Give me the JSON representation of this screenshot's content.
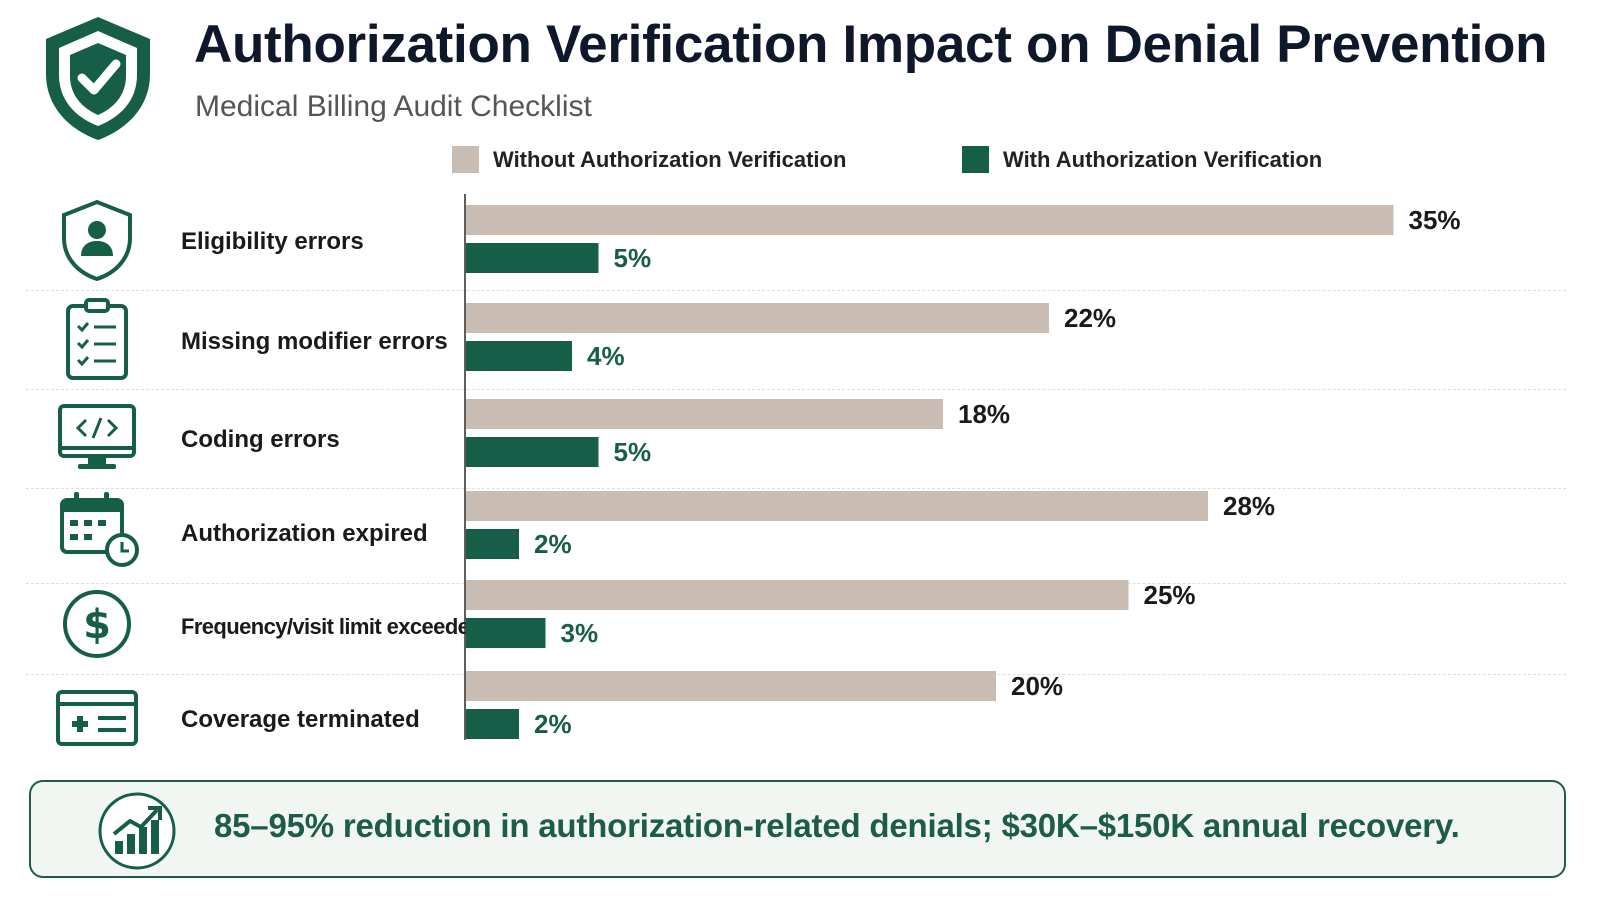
{
  "header": {
    "title": "Authorization Verification Impact on Denial Prevention",
    "subtitle": "Medical Billing Audit Checklist"
  },
  "colors": {
    "without": "#c9bdb3",
    "with": "#175e48",
    "accent": "#1d5c46",
    "footer_bg": "#f1f6f3"
  },
  "legend": {
    "without_label": "Without Authorization Verification",
    "with_label": "With Authorization Verification"
  },
  "categories": [
    {
      "label": "Eligibility errors",
      "icon": "user-shield-icon"
    },
    {
      "label": "Missing modifier errors",
      "icon": "clipboard-checklist-icon"
    },
    {
      "label": "Coding errors",
      "icon": "code-monitor-icon"
    },
    {
      "label": "Authorization expired",
      "icon": "calendar-clock-icon"
    },
    {
      "label": "Frequency/visit limit exceeded",
      "icon": "dollar-circle-icon"
    },
    {
      "label": "Coverage terminated",
      "icon": "insurance-card-icon"
    }
  ],
  "chart_data": {
    "type": "bar",
    "orientation": "horizontal",
    "categories": [
      "Eligibility errors",
      "Missing modifier errors",
      "Coding errors",
      "Authorization expired",
      "Frequency/visit limit exceeded",
      "Coverage terminated"
    ],
    "series": [
      {
        "name": "Without Authorization Verification",
        "values": [
          35,
          22,
          18,
          28,
          25,
          20
        ],
        "color": "#c9bdb3"
      },
      {
        "name": "With Authorization Verification",
        "values": [
          5,
          4,
          5,
          2,
          3,
          2
        ],
        "color": "#175e48"
      }
    ],
    "value_suffix": "%",
    "legend_position": "top",
    "grid": false
  },
  "footer": {
    "text": "85–95% reduction in authorization-related denials; $30K–$150K annual recovery.",
    "icon": "growth-chart-icon"
  }
}
